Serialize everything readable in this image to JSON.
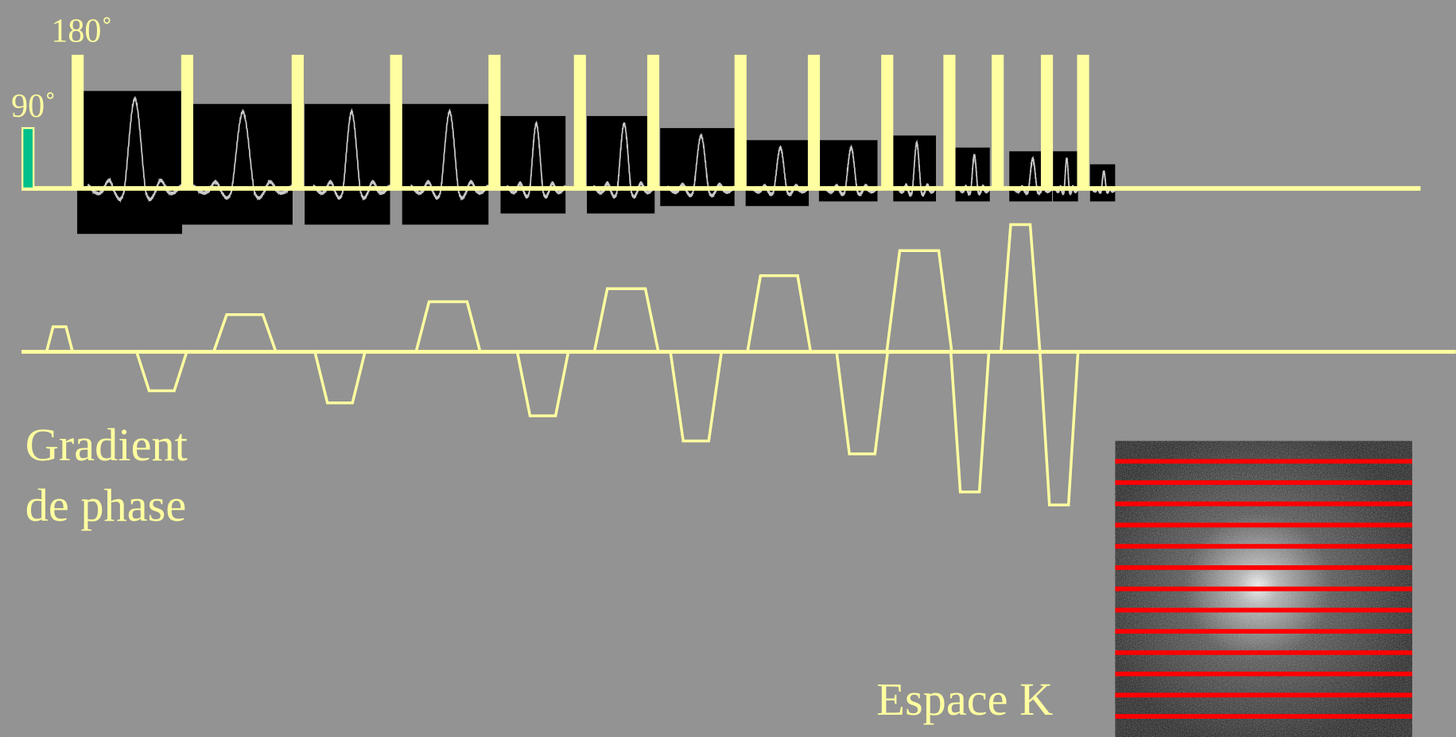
{
  "labels": {
    "rf_180": "180˚",
    "rf_90": "90˚",
    "gradient_line1": "Gradient",
    "gradient_line2": "de phase",
    "kspace": "Espace K"
  }
}
